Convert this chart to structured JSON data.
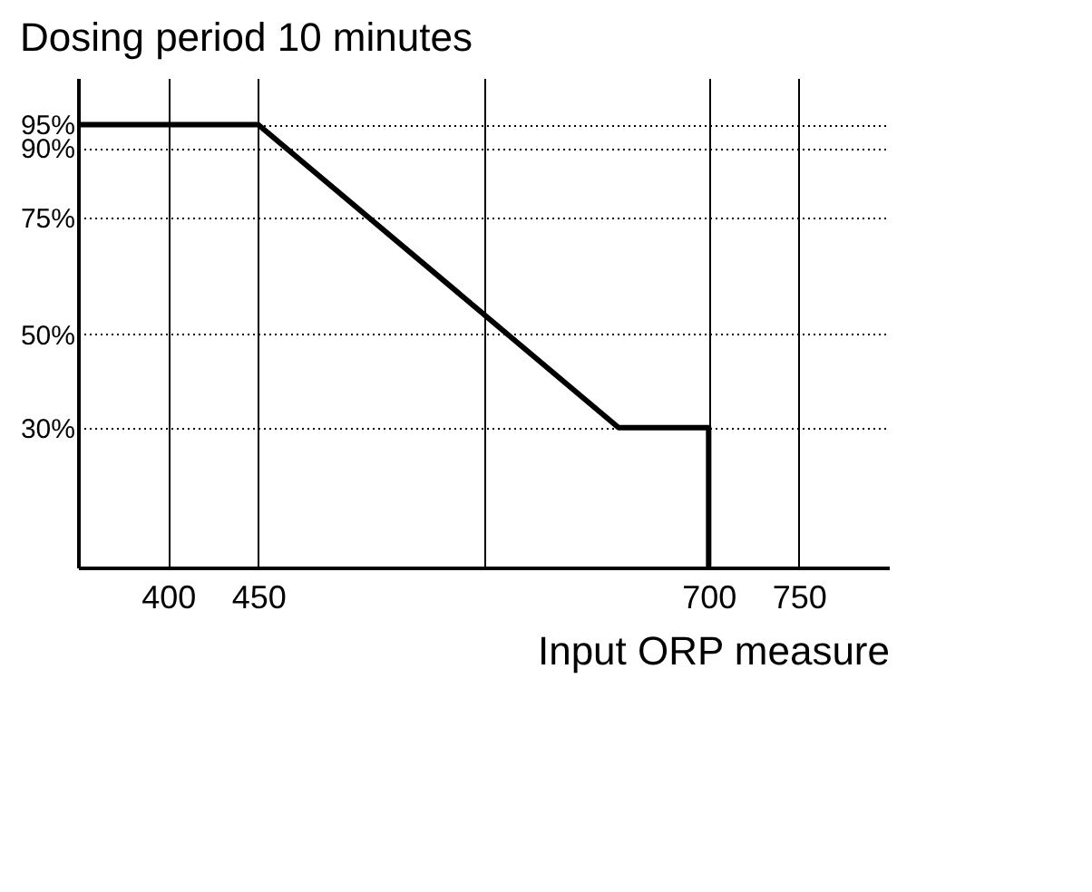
{
  "chart_data": {
    "type": "line",
    "title": "Dosing period 10 minutes",
    "xlabel": "Input ORP measure",
    "x": [
      350,
      450,
      650,
      700,
      700
    ],
    "series": [
      {
        "color": "#000000",
        "values": [
          95,
          95,
          30,
          30,
          0
        ]
      }
    ],
    "xlim": [
      350,
      800
    ],
    "ylim": [
      0,
      105
    ],
    "xticks": [
      400,
      450,
      {
        "value": 575,
        "label": null
      },
      700,
      750
    ],
    "yticks": [
      {
        "value": 30,
        "label": "30%"
      },
      {
        "value": 50,
        "label": "50%"
      },
      {
        "value": 75,
        "label": "75%"
      },
      {
        "value": 90,
        "label": "90%"
      },
      {
        "value": 95,
        "label": "95%"
      }
    ],
    "grid": true,
    "marker": "none",
    "line_style": "solid"
  }
}
